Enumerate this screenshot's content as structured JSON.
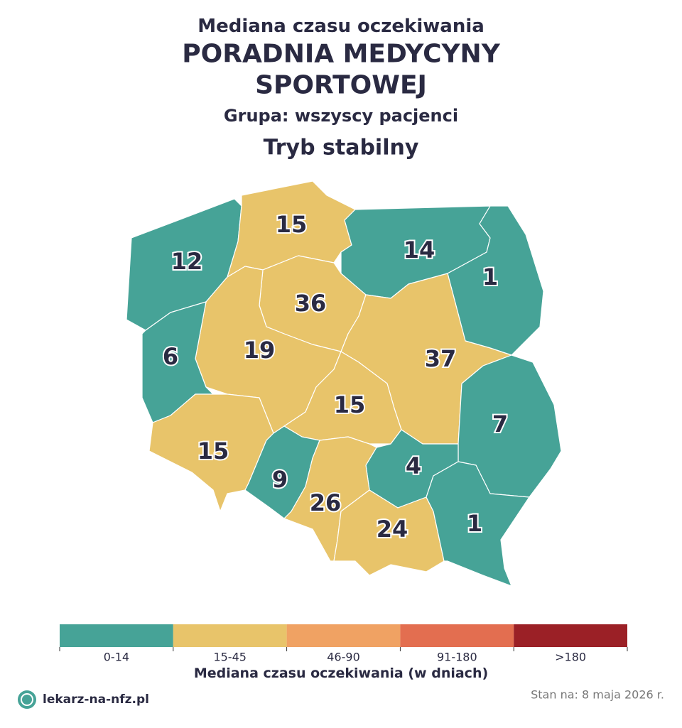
{
  "header": {
    "subtitle": "Mediana czasu oczekiwania",
    "title_lines": [
      "PORADNIA MEDYCYNY",
      "SPORTOWEJ"
    ],
    "group": "Grupa: wszyscy pacjenci",
    "mode": "Tryb stabilny"
  },
  "map": {
    "regions": [
      {
        "value": 12,
        "color": "#46a397"
      },
      {
        "value": 15,
        "color": "#e8c46a"
      },
      {
        "value": 14,
        "color": "#46a397"
      },
      {
        "value": 1,
        "color": "#46a397"
      },
      {
        "value": 36,
        "color": "#e8c46a"
      },
      {
        "value": 37,
        "color": "#e8c46a"
      },
      {
        "value": 19,
        "color": "#e8c46a"
      },
      {
        "value": 6,
        "color": "#46a397"
      },
      {
        "value": 15,
        "color": "#e8c46a"
      },
      {
        "value": 7,
        "color": "#46a397"
      },
      {
        "value": 15,
        "color": "#e8c46a"
      },
      {
        "value": 9,
        "color": "#46a397"
      },
      {
        "value": 4,
        "color": "#46a397"
      },
      {
        "value": 26,
        "color": "#e8c46a"
      },
      {
        "value": 24,
        "color": "#e8c46a"
      },
      {
        "value": 1,
        "color": "#46a397"
      }
    ]
  },
  "legend": {
    "title": "Mediana czasu oczekiwania (w dniach)",
    "items": [
      {
        "label": "0-14",
        "color": "#46a397"
      },
      {
        "label": "15-45",
        "color": "#e8c46a"
      },
      {
        "label": "46-90",
        "color": "#f0a263"
      },
      {
        "label": "91-180",
        "color": "#e36e50"
      },
      {
        "label": ">180",
        "color": "#9b2026"
      }
    ]
  },
  "footer": {
    "source": "lekarz-na-nfz.pl",
    "date": "Stan na: 8 maja 2026 r."
  }
}
